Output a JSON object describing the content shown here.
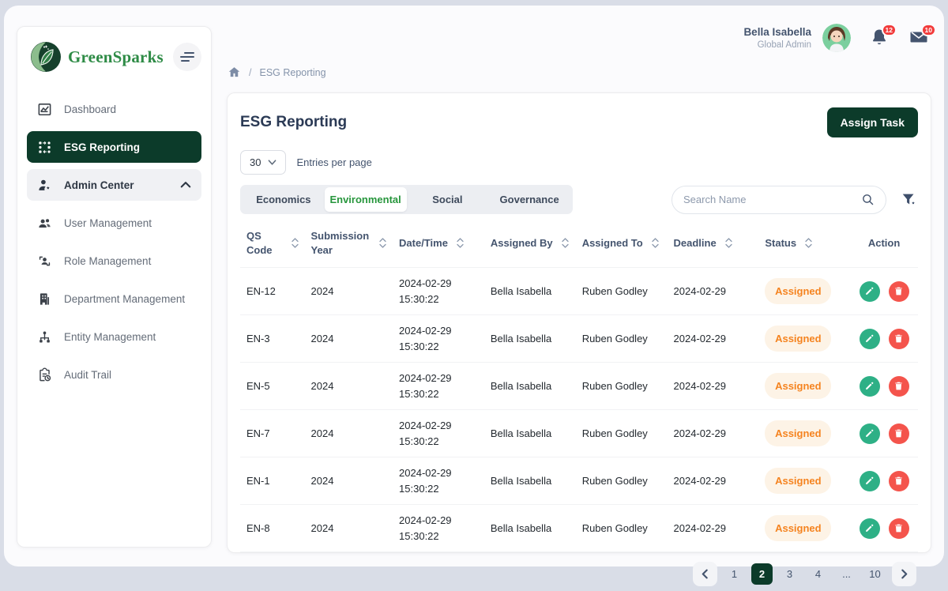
{
  "brand": {
    "name": "GreenSparks"
  },
  "topbar": {
    "user_name": "Bella Isabella",
    "user_role": "Global Admin",
    "notifications_count": "12",
    "messages_count": "10"
  },
  "breadcrumb": {
    "separator": "/",
    "current": "ESG Reporting"
  },
  "sidebar": {
    "items": [
      {
        "label": "Dashboard",
        "icon": "dashboard",
        "state": "plain"
      },
      {
        "label": "ESG Reporting",
        "icon": "esg-reporting",
        "state": "active"
      },
      {
        "label": "Admin Center",
        "icon": "admin-center",
        "state": "section",
        "chevron": "up"
      },
      {
        "label": "User Management",
        "icon": "user-management",
        "state": "plain"
      },
      {
        "label": "Role Management",
        "icon": "role-management",
        "state": "plain"
      },
      {
        "label": "Department Management",
        "icon": "department-management",
        "state": "plain"
      },
      {
        "label": "Entity Management",
        "icon": "entity-management",
        "state": "plain"
      },
      {
        "label": "Audit Trail",
        "icon": "audit-trail",
        "state": "plain"
      }
    ]
  },
  "page": {
    "title": "ESG Reporting",
    "assign_task_label": "Assign Task",
    "entries_value": "30",
    "entries_label": "Entries per page",
    "search_placeholder": "Search Name"
  },
  "tabs": [
    {
      "label": "Economics",
      "active": false
    },
    {
      "label": "Environmental",
      "active": true
    },
    {
      "label": "Social",
      "active": false
    },
    {
      "label": "Governance",
      "active": false
    }
  ],
  "table": {
    "columns": [
      {
        "label": "QS Code",
        "sortable": true
      },
      {
        "label": "Submission Year",
        "sortable": true
      },
      {
        "label": "Date/Time",
        "sortable": true
      },
      {
        "label": "Assigned By",
        "sortable": true
      },
      {
        "label": "Assigned To",
        "sortable": true
      },
      {
        "label": "Deadline",
        "sortable": true
      },
      {
        "label": "Status",
        "sortable": true
      },
      {
        "label": "Action",
        "sortable": false
      }
    ],
    "rows": [
      {
        "qs_code": "EN-12",
        "submission_year": "2024",
        "date": "2024-02-29",
        "time": "15:30:22",
        "assigned_by": "Bella Isabella",
        "assigned_to": "Ruben Godley",
        "deadline": "2024-02-29",
        "status": "Assigned"
      },
      {
        "qs_code": "EN-3",
        "submission_year": "2024",
        "date": "2024-02-29",
        "time": "15:30:22",
        "assigned_by": "Bella Isabella",
        "assigned_to": "Ruben Godley",
        "deadline": "2024-02-29",
        "status": "Assigned"
      },
      {
        "qs_code": "EN-5",
        "submission_year": "2024",
        "date": "2024-02-29",
        "time": "15:30:22",
        "assigned_by": "Bella Isabella",
        "assigned_to": "Ruben Godley",
        "deadline": "2024-02-29",
        "status": "Assigned"
      },
      {
        "qs_code": "EN-7",
        "submission_year": "2024",
        "date": "2024-02-29",
        "time": "15:30:22",
        "assigned_by": "Bella Isabella",
        "assigned_to": "Ruben Godley",
        "deadline": "2024-02-29",
        "status": "Assigned"
      },
      {
        "qs_code": "EN-1",
        "submission_year": "2024",
        "date": "2024-02-29",
        "time": "15:30:22",
        "assigned_by": "Bella Isabella",
        "assigned_to": "Ruben Godley",
        "deadline": "2024-02-29",
        "status": "Assigned"
      },
      {
        "qs_code": "EN-8",
        "submission_year": "2024",
        "date": "2024-02-29",
        "time": "15:30:22",
        "assigned_by": "Bella Isabella",
        "assigned_to": "Ruben Godley",
        "deadline": "2024-02-29",
        "status": "Assigned"
      }
    ]
  },
  "pagination": {
    "pages": [
      "1",
      "2",
      "3",
      "4",
      "...",
      "10"
    ],
    "active": "2"
  },
  "colors": {
    "dark_green": "#0c3b2a",
    "brand_green": "#2e8b46",
    "tab_active_green": "#27963c",
    "status_orange": "#f5831f",
    "status_bg": "#fdf3e6",
    "edit_green": "#2eb086",
    "delete_red": "#f4544c",
    "badge_red": "#f23b3b"
  }
}
